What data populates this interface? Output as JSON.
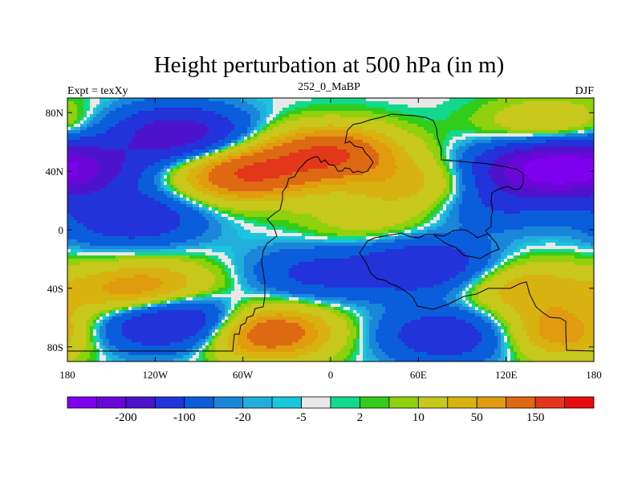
{
  "chart_data": {
    "type": "heatmap",
    "title": "Height perturbation at 500 hPa (in m)",
    "left_string": "Expt = texXy",
    "center_string": "252_0_MaBP",
    "right_string": "DJF",
    "x_ticks": [
      "180",
      "120W",
      "60W",
      "0",
      "60E",
      "120E",
      "180"
    ],
    "x_tick_values": [
      -180,
      -120,
      -60,
      0,
      60,
      120,
      180
    ],
    "y_ticks": [
      "80N",
      "40N",
      "0",
      "40S",
      "80S"
    ],
    "y_tick_values": [
      80,
      40,
      0,
      -40,
      -80
    ],
    "xlim": [
      -180,
      180
    ],
    "ylim": [
      -90,
      90
    ],
    "colorbar": {
      "colors": [
        "#7f00ee",
        "#6a07d8",
        "#4d13cc",
        "#2233d9",
        "#0a5edb",
        "#1a86da",
        "#22aedc",
        "#1ac6dd",
        "#e8e8e8",
        "#12d98b",
        "#32cc1a",
        "#8fd10c",
        "#c7c71c",
        "#d8b20f",
        "#e09b0f",
        "#dd6912",
        "#e3371a",
        "#e80c0c"
      ],
      "labels": [
        "-200",
        "-100",
        "-20",
        "-5",
        "2",
        "10",
        "50",
        "150"
      ],
      "label_after_box": [
        1,
        3,
        5,
        7,
        9,
        11,
        13,
        15
      ]
    },
    "anomaly_centers": [
      {
        "lon": -105,
        "lat": 65,
        "value": -140
      },
      {
        "lon": -175,
        "lat": 42,
        "value": -120
      },
      {
        "lon": -60,
        "lat": 38,
        "value": 150
      },
      {
        "lon": 0,
        "lat": 52,
        "value": 150
      },
      {
        "lon": 145,
        "lat": 42,
        "value": -190
      },
      {
        "lon": 110,
        "lat": 18,
        "value": -50
      },
      {
        "lon": -135,
        "lat": 8,
        "value": -90
      },
      {
        "lon": 25,
        "lat": 5,
        "value": 30
      },
      {
        "lon": 150,
        "lat": 70,
        "value": 55
      },
      {
        "lon": 60,
        "lat": 30,
        "value": 60
      },
      {
        "lon": -10,
        "lat": -30,
        "value": -60
      },
      {
        "lon": 65,
        "lat": -25,
        "value": -100
      },
      {
        "lon": -120,
        "lat": -40,
        "value": 80
      },
      {
        "lon": 130,
        "lat": -40,
        "value": 70
      },
      {
        "lon": -150,
        "lat": -45,
        "value": 40
      },
      {
        "lon": -45,
        "lat": -70,
        "value": 150
      },
      {
        "lon": 165,
        "lat": -70,
        "value": 120
      },
      {
        "lon": 80,
        "lat": -72,
        "value": -90
      },
      {
        "lon": -100,
        "lat": -62,
        "value": -130
      },
      {
        "lon": -160,
        "lat": -68,
        "value": -60
      }
    ]
  }
}
